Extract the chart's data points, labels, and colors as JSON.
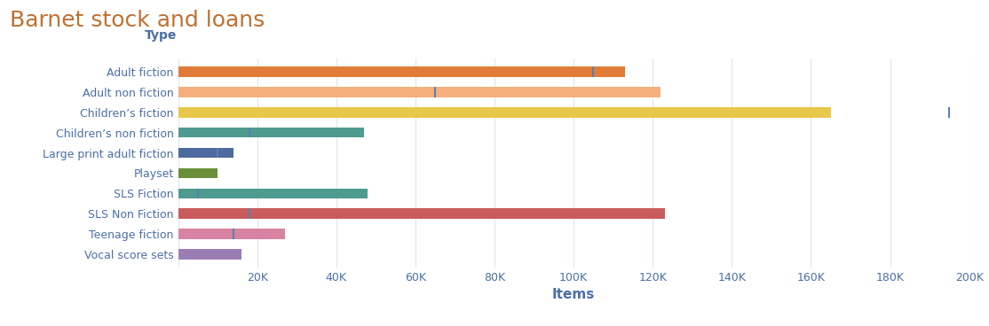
{
  "title": "Barnet stock and loans",
  "xlabel": "Items",
  "categories": [
    "Adult fiction",
    "Adult non fiction",
    "Children’s fiction",
    "Children’s non fiction",
    "Large print adult fiction",
    "Playset",
    "SLS Fiction",
    "SLS Non Fiction",
    "Teenage fiction",
    "Vocal score sets"
  ],
  "stock_values": [
    113000,
    122000,
    165000,
    47000,
    14000,
    10000,
    48000,
    123000,
    27000,
    16000
  ],
  "loan_values": [
    105000,
    65000,
    195000,
    18000,
    10000,
    null,
    5000,
    18000,
    14000,
    null
  ],
  "bar_colors": [
    "#e07b39",
    "#f5b07e",
    "#e8c84a",
    "#4e9b8f",
    "#4e6a9e",
    "#6a8f3a",
    "#4e9b8f",
    "#c95c5c",
    "#d983a2",
    "#9b7db5"
  ],
  "loan_line_color": "#5b7fae",
  "title_color": "#c07030",
  "label_color": "#4a6fa5",
  "tick_label_color": "#4a6fa5",
  "xlim": [
    0,
    200000
  ],
  "xtick_values": [
    0,
    20000,
    40000,
    60000,
    80000,
    100000,
    120000,
    140000,
    160000,
    180000,
    200000
  ],
  "xtick_labels": [
    "",
    "20K",
    "40K",
    "60K",
    "80K",
    "100K",
    "120K",
    "140K",
    "160K",
    "180K",
    "200K"
  ],
  "background_color": "#ffffff",
  "grid_color": "#dce8f0",
  "bar_height": 0.5,
  "title_fontsize": 18,
  "type_label_fontsize": 10,
  "ylabel_fontsize": 9,
  "xlabel_fontsize": 11
}
